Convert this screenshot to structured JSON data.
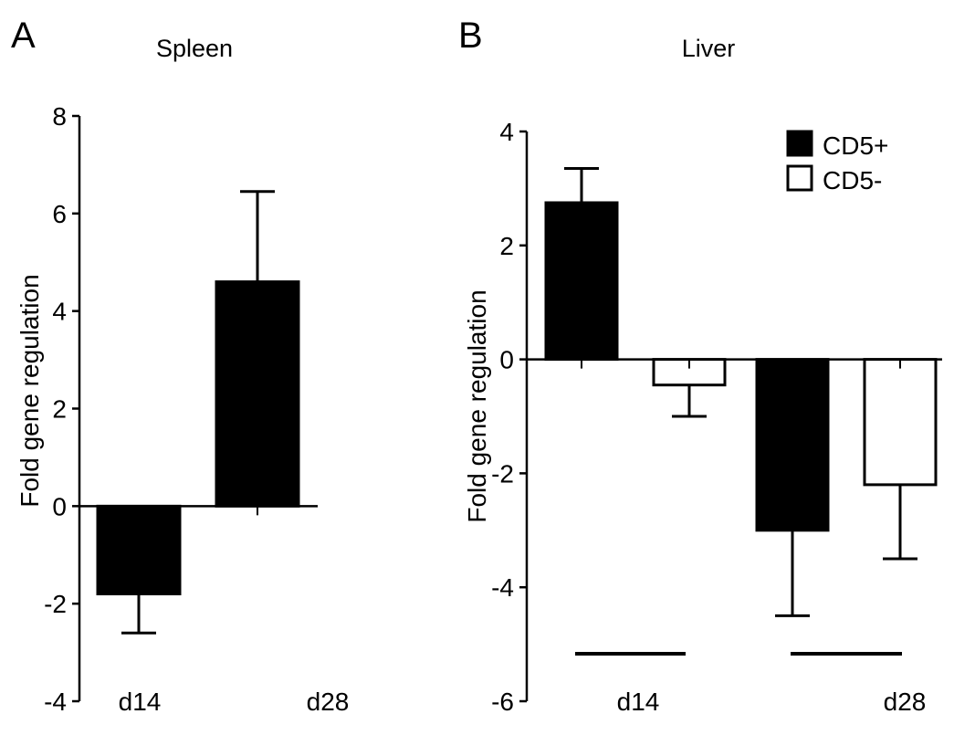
{
  "panels": {
    "a": {
      "letter": "A"
    },
    "b": {
      "letter": "B"
    }
  },
  "chart_data": [
    {
      "type": "bar",
      "title": "Spleen",
      "xlabel": "",
      "ylabel": "Fold gene regulation",
      "ylim": [
        -4,
        8
      ],
      "yticks": [
        "-4",
        "-2",
        "0",
        "2",
        "4",
        "6",
        "8"
      ],
      "categories": [
        "d14",
        "d28"
      ],
      "series": [
        {
          "values": [
            -1.8,
            4.6
          ],
          "error": [
            0.8,
            1.85
          ],
          "color": "#000000"
        }
      ],
      "grid": false
    },
    {
      "type": "bar",
      "title": "Liver",
      "xlabel": "",
      "ylabel": "Fold gene regulation",
      "ylim": [
        -6,
        4
      ],
      "yticks": [
        "-6",
        "-4",
        "-2",
        "0",
        "2",
        "4"
      ],
      "categories": [
        "d14",
        "d28"
      ],
      "series": [
        {
          "name": "CD5+",
          "values": [
            2.75,
            -3.0
          ],
          "error": [
            0.6,
            1.5
          ],
          "color": "#000000"
        },
        {
          "name": "CD5-",
          "values": [
            -0.45,
            -2.2
          ],
          "error": [
            0.55,
            1.3
          ],
          "color": "#ffffff"
        }
      ],
      "legend": "top-right",
      "grid": false
    }
  ]
}
